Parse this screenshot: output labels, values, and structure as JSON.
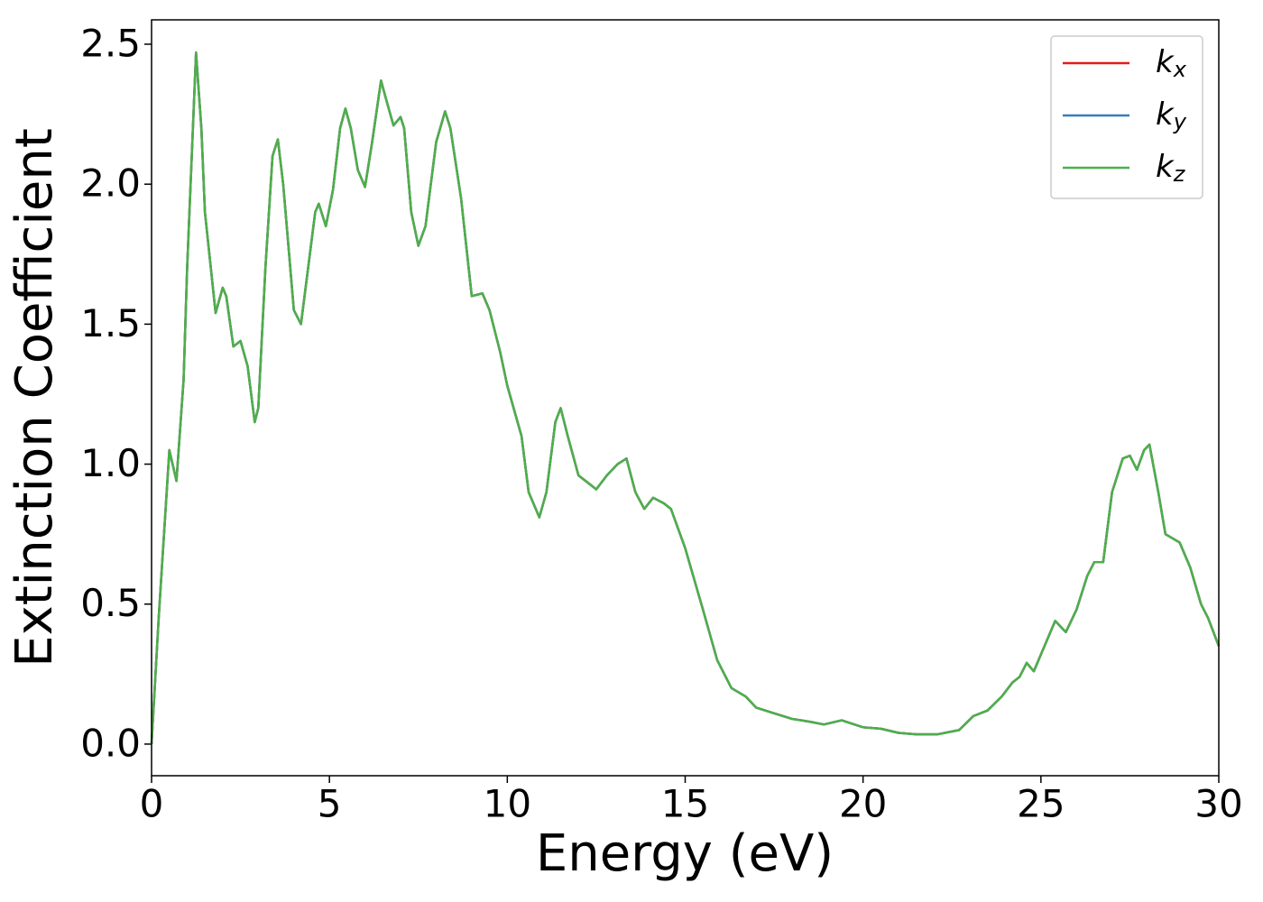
{
  "chart_data": {
    "type": "line",
    "x_label": "Energy (eV)",
    "y_label": "Extinction Coefficient",
    "xlim": [
      0,
      30
    ],
    "ylim": [
      -0.113,
      2.587
    ],
    "xticks": [
      0,
      5,
      10,
      15,
      20,
      25,
      30
    ],
    "yticks": [
      {
        "value": 0,
        "label": "0.0"
      },
      {
        "value": 0.5,
        "label": "0.5"
      },
      {
        "value": 1,
        "label": "1.0"
      },
      {
        "value": 1.5,
        "label": "1.5"
      },
      {
        "value": 2,
        "label": "2.0"
      },
      {
        "value": 2.5,
        "label": "2.5"
      }
    ],
    "legend": "upper right",
    "x": [
      0,
      0.2,
      0.5,
      0.7,
      0.9,
      1.0,
      1.25,
      1.4,
      1.5,
      1.8,
      2.0,
      2.1,
      2.3,
      2.5,
      2.7,
      2.9,
      3.0,
      3.2,
      3.4,
      3.55,
      3.7,
      4.0,
      4.2,
      4.4,
      4.6,
      4.7,
      4.9,
      5.1,
      5.3,
      5.45,
      5.6,
      5.8,
      6.0,
      6.2,
      6.45,
      6.6,
      6.8,
      7.0,
      7.1,
      7.3,
      7.5,
      7.7,
      8.0,
      8.25,
      8.4,
      8.7,
      9.0,
      9.3,
      9.5,
      9.8,
      10.0,
      10.4,
      10.6,
      10.9,
      11.1,
      11.35,
      11.5,
      11.7,
      12.0,
      12.3,
      12.5,
      12.8,
      13.1,
      13.35,
      13.6,
      13.85,
      14.1,
      14.4,
      14.6,
      15.0,
      15.5,
      15.9,
      16.3,
      16.7,
      17.0,
      17.5,
      18.0,
      18.5,
      18.9,
      19.4,
      20.0,
      20.5,
      21.0,
      21.5,
      22.1,
      22.7,
      23.1,
      23.5,
      23.9,
      24.2,
      24.4,
      24.6,
      24.8,
      25.0,
      25.4,
      25.7,
      26.0,
      26.3,
      26.5,
      26.75,
      27.0,
      27.3,
      27.5,
      27.7,
      27.9,
      28.05,
      28.3,
      28.5,
      28.9,
      29.2,
      29.5,
      29.7,
      30.0
    ],
    "series": [
      {
        "name": "kx",
        "color": "#e41a1c",
        "values": [
          0,
          0.45,
          1.05,
          0.94,
          1.3,
          1.7,
          2.47,
          2.2,
          1.9,
          1.54,
          1.63,
          1.6,
          1.42,
          1.44,
          1.35,
          1.15,
          1.2,
          1.7,
          2.1,
          2.16,
          2.0,
          1.55,
          1.5,
          1.7,
          1.9,
          1.93,
          1.85,
          1.98,
          2.2,
          2.27,
          2.2,
          2.05,
          1.99,
          2.15,
          2.37,
          2.3,
          2.21,
          2.24,
          2.2,
          1.9,
          1.78,
          1.85,
          2.15,
          2.26,
          2.2,
          1.95,
          1.6,
          1.61,
          1.55,
          1.4,
          1.28,
          1.1,
          0.9,
          0.81,
          0.9,
          1.15,
          1.2,
          1.1,
          0.96,
          0.93,
          0.91,
          0.96,
          1.0,
          1.02,
          0.9,
          0.84,
          0.88,
          0.86,
          0.84,
          0.7,
          0.48,
          0.3,
          0.2,
          0.17,
          0.13,
          0.11,
          0.09,
          0.08,
          0.07,
          0.085,
          0.06,
          0.055,
          0.04,
          0.035,
          0.035,
          0.05,
          0.1,
          0.12,
          0.17,
          0.22,
          0.24,
          0.29,
          0.26,
          0.32,
          0.44,
          0.4,
          0.48,
          0.6,
          0.65,
          0.65,
          0.9,
          1.02,
          1.03,
          0.98,
          1.05,
          1.07,
          0.9,
          0.75,
          0.72,
          0.63,
          0.5,
          0.45,
          0.35
        ]
      },
      {
        "name": "ky",
        "color": "#377eb8",
        "values": [
          0,
          0.45,
          1.05,
          0.94,
          1.3,
          1.7,
          2.47,
          2.2,
          1.9,
          1.54,
          1.63,
          1.6,
          1.42,
          1.44,
          1.35,
          1.15,
          1.2,
          1.7,
          2.1,
          2.16,
          2.0,
          1.55,
          1.5,
          1.7,
          1.9,
          1.93,
          1.85,
          1.98,
          2.2,
          2.27,
          2.2,
          2.05,
          1.99,
          2.15,
          2.37,
          2.3,
          2.21,
          2.24,
          2.2,
          1.9,
          1.78,
          1.85,
          2.15,
          2.26,
          2.2,
          1.95,
          1.6,
          1.61,
          1.55,
          1.4,
          1.28,
          1.1,
          0.9,
          0.81,
          0.9,
          1.15,
          1.2,
          1.1,
          0.96,
          0.93,
          0.91,
          0.96,
          1.0,
          1.02,
          0.9,
          0.84,
          0.88,
          0.86,
          0.84,
          0.7,
          0.48,
          0.3,
          0.2,
          0.17,
          0.13,
          0.11,
          0.09,
          0.08,
          0.07,
          0.085,
          0.06,
          0.055,
          0.04,
          0.035,
          0.035,
          0.05,
          0.1,
          0.12,
          0.17,
          0.22,
          0.24,
          0.29,
          0.26,
          0.32,
          0.44,
          0.4,
          0.48,
          0.6,
          0.65,
          0.65,
          0.9,
          1.02,
          1.03,
          0.98,
          1.05,
          1.07,
          0.9,
          0.75,
          0.72,
          0.63,
          0.5,
          0.45,
          0.35
        ]
      },
      {
        "name": "kz",
        "color": "#4daf4a",
        "values": [
          0,
          0.45,
          1.05,
          0.94,
          1.3,
          1.7,
          2.47,
          2.2,
          1.9,
          1.54,
          1.63,
          1.6,
          1.42,
          1.44,
          1.35,
          1.15,
          1.2,
          1.7,
          2.1,
          2.16,
          2.0,
          1.55,
          1.5,
          1.7,
          1.9,
          1.93,
          1.85,
          1.98,
          2.2,
          2.27,
          2.2,
          2.05,
          1.99,
          2.15,
          2.37,
          2.3,
          2.21,
          2.24,
          2.2,
          1.9,
          1.78,
          1.85,
          2.15,
          2.26,
          2.2,
          1.95,
          1.6,
          1.61,
          1.55,
          1.4,
          1.28,
          1.1,
          0.9,
          0.81,
          0.9,
          1.15,
          1.2,
          1.1,
          0.96,
          0.93,
          0.91,
          0.96,
          1.0,
          1.02,
          0.9,
          0.84,
          0.88,
          0.86,
          0.84,
          0.7,
          0.48,
          0.3,
          0.2,
          0.17,
          0.13,
          0.11,
          0.09,
          0.08,
          0.07,
          0.085,
          0.06,
          0.055,
          0.04,
          0.035,
          0.035,
          0.05,
          0.1,
          0.12,
          0.17,
          0.22,
          0.24,
          0.29,
          0.26,
          0.32,
          0.44,
          0.4,
          0.48,
          0.6,
          0.65,
          0.65,
          0.9,
          1.02,
          1.03,
          0.98,
          1.05,
          1.07,
          0.9,
          0.75,
          0.72,
          0.63,
          0.5,
          0.45,
          0.35
        ]
      }
    ]
  }
}
